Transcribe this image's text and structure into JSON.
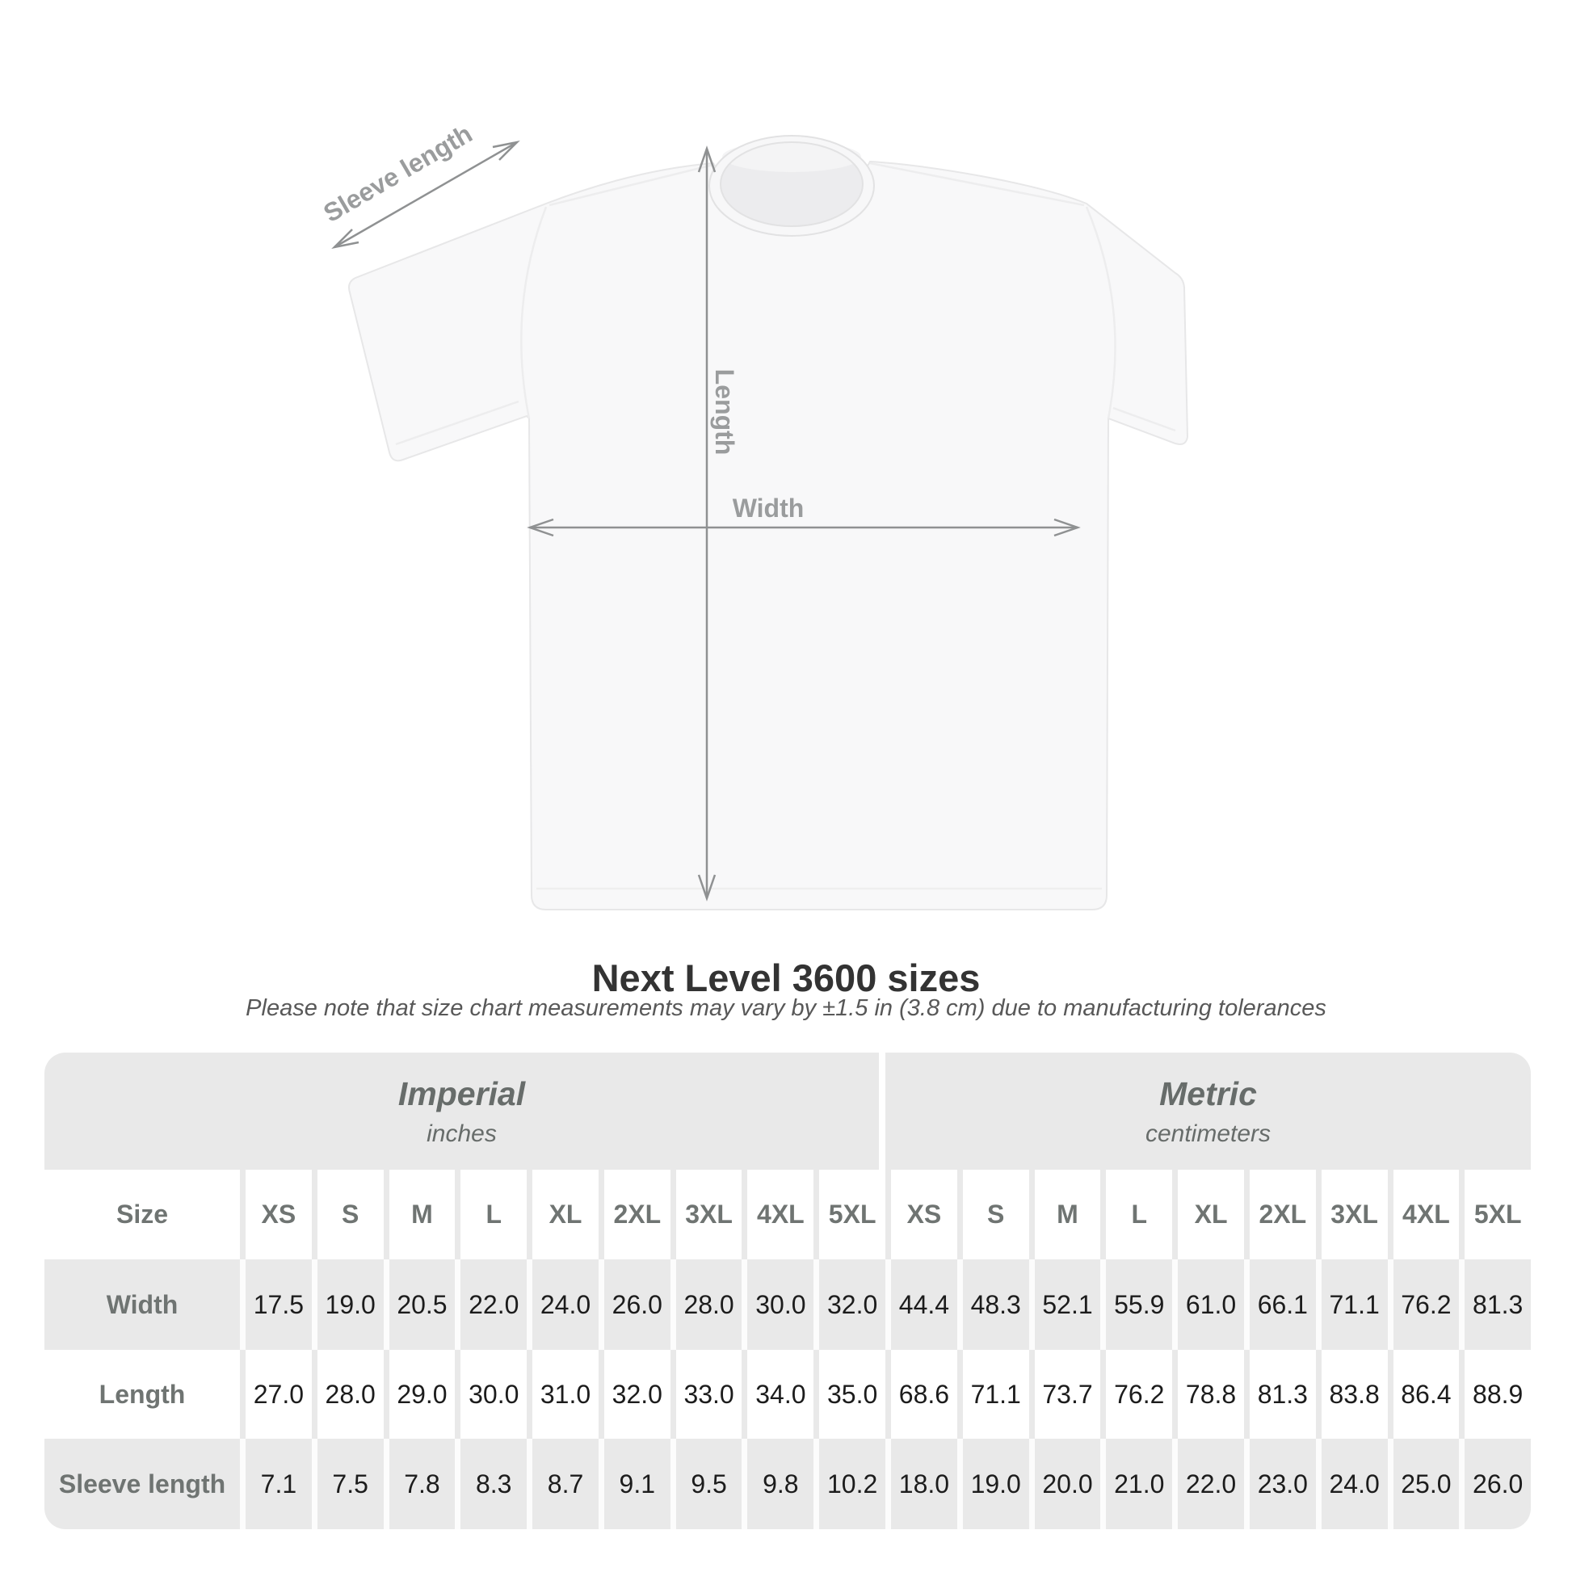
{
  "page": {
    "background": "#ffffff"
  },
  "diagram": {
    "sleeve_label": "Sleeve length",
    "length_label": "Length",
    "width_label": "Width",
    "arrow_color": "#8f9192",
    "label_color": "#9a9c9d",
    "shirt_fill": "#f8f8f9",
    "shirt_outline": "#e7e7e8"
  },
  "chart_data": {
    "type": "table",
    "title": "Next Level 3600 sizes",
    "note": "Please note that size chart measurements may vary by ±1.5 in (3.8 cm) due to manufacturing tolerances",
    "size_header_label": "Size",
    "sizes": [
      "XS",
      "S",
      "M",
      "L",
      "XL",
      "2XL",
      "3XL",
      "4XL",
      "5XL"
    ],
    "groups": [
      {
        "title": "Imperial",
        "unit": "inches"
      },
      {
        "title": "Metric",
        "unit": "centimeters"
      }
    ],
    "rows": [
      {
        "label": "Width",
        "imperial": [
          "17.5",
          "19.0",
          "20.5",
          "22.0",
          "24.0",
          "26.0",
          "28.0",
          "30.0",
          "32.0"
        ],
        "metric": [
          "44.4",
          "48.3",
          "52.1",
          "55.9",
          "61.0",
          "66.1",
          "71.1",
          "76.2",
          "81.3"
        ]
      },
      {
        "label": "Length",
        "imperial": [
          "27.0",
          "28.0",
          "29.0",
          "30.0",
          "31.0",
          "32.0",
          "33.0",
          "34.0",
          "35.0"
        ],
        "metric": [
          "68.6",
          "71.1",
          "73.7",
          "76.2",
          "78.8",
          "81.3",
          "83.8",
          "86.4",
          "88.9"
        ]
      },
      {
        "label": "Sleeve length",
        "imperial": [
          "7.1",
          "7.5",
          "7.8",
          "8.3",
          "8.7",
          "9.1",
          "9.5",
          "9.8",
          "10.2"
        ],
        "metric": [
          "18.0",
          "19.0",
          "20.0",
          "21.0",
          "22.0",
          "23.0",
          "24.0",
          "25.0",
          "26.0"
        ]
      }
    ],
    "colors": {
      "band_gray": "#e9e9e9",
      "value_text": "#1c1c1c",
      "header_text": "#6f7472",
      "group_text": "#676c6a"
    }
  }
}
